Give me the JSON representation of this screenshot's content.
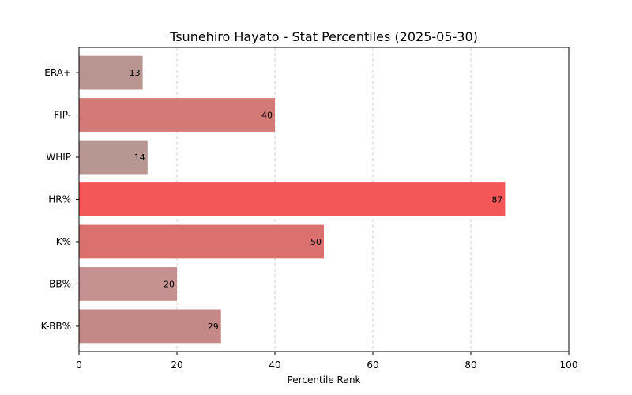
{
  "chart_data": {
    "type": "bar",
    "orientation": "horizontal",
    "title": "Tsunehiro Hayato - Stat Percentiles (2025-05-30)",
    "xlabel": "Percentile Rank",
    "ylabel": "",
    "xlim": [
      0,
      100
    ],
    "xticks": [
      0,
      20,
      40,
      60,
      80,
      100
    ],
    "grid": "x-dashed",
    "categories": [
      "ERA+",
      "FIP-",
      "WHIP",
      "HR%",
      "K%",
      "BB%",
      "K-BB%"
    ],
    "values": [
      13,
      40,
      14,
      87,
      50,
      20,
      29
    ],
    "colors": [
      "#b89590",
      "#d47a76",
      "#b89692",
      "#f35758",
      "#da716f",
      "#c59291",
      "#c48886"
    ]
  }
}
